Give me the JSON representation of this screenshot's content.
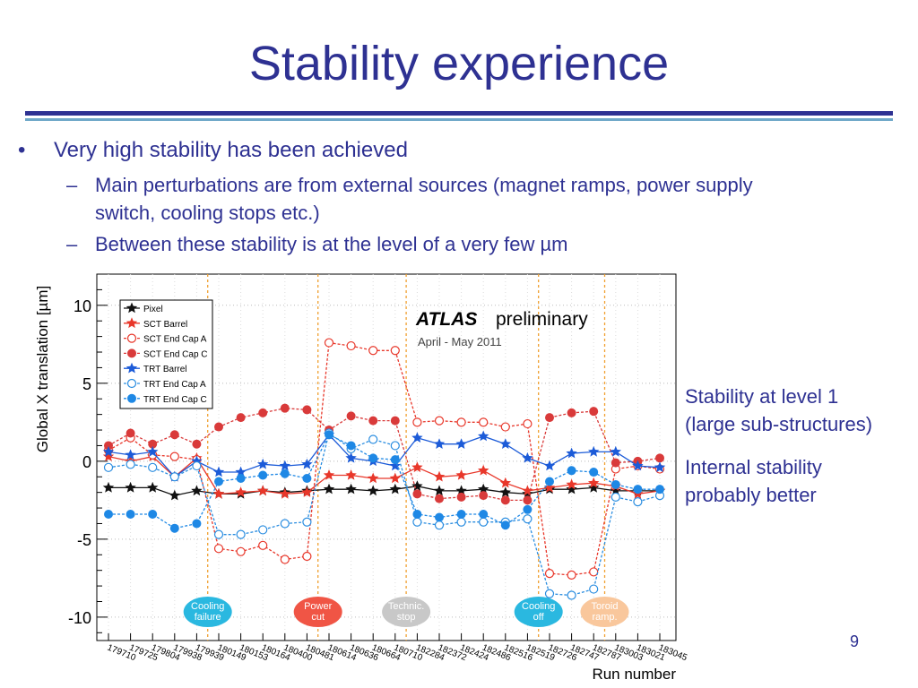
{
  "slide": {
    "title": "Stability experience",
    "bullet": "Very high stability has been achieved",
    "sub_bullets": [
      "Main perturbations are from external sources (magnet ramps, power supply",
      "switch, cooling stops etc.)",
      "Between these stability is at the level of a very few µm"
    ],
    "side_notes": [
      "Stability at level 1",
      "(large sub-structures)",
      "Internal stability",
      "probably better"
    ],
    "page_number": "9"
  },
  "chart_data": {
    "type": "line",
    "title": "ATLAS",
    "title_suffix": "preliminary",
    "subtitle": "April - May 2011",
    "xlabel": "Run number",
    "ylabel": "Global X translation [µm]",
    "ylim": [
      -11.5,
      12
    ],
    "yticks": [
      10,
      5,
      0,
      -5,
      -10
    ],
    "legend_position": "top-left",
    "categories": [
      "179710",
      "179725",
      "179804",
      "179938",
      "179939",
      "180149",
      "180153",
      "180164",
      "180400",
      "180481",
      "180614",
      "180636",
      "180664",
      "180710",
      "182284",
      "182372",
      "182424",
      "182486",
      "182516",
      "182519",
      "182726",
      "182747",
      "182787",
      "183003",
      "183021",
      "183045"
    ],
    "events": [
      {
        "label_lines": [
          "Cooling",
          "failure"
        ],
        "after_index": 4.5,
        "color": "#2ab8e0"
      },
      {
        "label_lines": [
          "Power",
          "cut"
        ],
        "after_index": 9.5,
        "color": "#f05545"
      },
      {
        "label_lines": [
          "Technic.",
          "stop"
        ],
        "after_index": 13.5,
        "color": "#c8c8c8"
      },
      {
        "label_lines": [
          "Cooling",
          "off"
        ],
        "after_index": 19.5,
        "color": "#2ab8e0"
      },
      {
        "label_lines": [
          "Toroid",
          "ramp."
        ],
        "after_index": 22.5,
        "color": "#f9c79c"
      }
    ],
    "series": [
      {
        "name": "Pixel",
        "color": "#111111",
        "marker": "star",
        "filled": true,
        "dashed": false,
        "values": [
          -1.7,
          -1.7,
          -1.7,
          -2.2,
          -1.9,
          -2.1,
          -2.1,
          -1.9,
          -2.0,
          -1.9,
          -1.8,
          -1.8,
          -1.9,
          -1.8,
          -1.6,
          -1.9,
          -1.9,
          -1.8,
          -2.0,
          -2.1,
          -1.8,
          -1.8,
          -1.7,
          -1.9,
          -1.9,
          -1.9
        ]
      },
      {
        "name": "SCT Barrel",
        "color": "#e8372a",
        "marker": "star",
        "filled": true,
        "dashed": false,
        "values": [
          0.3,
          0.0,
          0.3,
          -1.0,
          0.2,
          -2.1,
          -2.0,
          -1.9,
          -2.1,
          -2.0,
          -0.9,
          -0.9,
          -1.1,
          -1.1,
          -0.4,
          -1.0,
          -0.9,
          -0.6,
          -1.4,
          -1.9,
          -1.7,
          -1.5,
          -1.4,
          -1.6,
          -2.1,
          -1.9
        ]
      },
      {
        "name": "SCT End Cap A",
        "color": "#e8372a",
        "marker": "circle",
        "filled": false,
        "dashed": true,
        "values": [
          0.7,
          1.5,
          0.4,
          0.3,
          0.1,
          -5.6,
          -5.8,
          -5.4,
          -6.3,
          -6.1,
          7.6,
          7.4,
          7.1,
          7.1,
          2.5,
          2.6,
          2.5,
          2.5,
          2.2,
          2.4,
          -7.2,
          -7.3,
          -7.1,
          -0.5,
          -0.3,
          -0.5
        ]
      },
      {
        "name": "SCT End Cap C",
        "color": "#d93a3a",
        "marker": "circle",
        "filled": true,
        "dashed": true,
        "values": [
          1.0,
          1.8,
          1.1,
          1.7,
          1.1,
          2.2,
          2.8,
          3.1,
          3.4,
          3.3,
          2.0,
          2.9,
          2.6,
          2.6,
          -2.1,
          -2.4,
          -2.3,
          -2.2,
          -2.5,
          -2.5,
          2.8,
          3.1,
          3.2,
          -0.1,
          0.0,
          0.2
        ]
      },
      {
        "name": "TRT Barrel",
        "color": "#1c5bd8",
        "marker": "star",
        "filled": true,
        "dashed": false,
        "values": [
          0.6,
          0.4,
          0.6,
          -1.0,
          0.0,
          -0.7,
          -0.7,
          -0.2,
          -0.3,
          -0.2,
          1.7,
          0.2,
          0.0,
          -0.3,
          1.5,
          1.1,
          1.1,
          1.6,
          1.1,
          0.2,
          -0.3,
          0.5,
          0.6,
          0.6,
          -0.3,
          -0.4
        ]
      },
      {
        "name": "TRT End Cap A",
        "color": "#2a8de0",
        "marker": "circle",
        "filled": false,
        "dashed": true,
        "values": [
          -0.4,
          -0.2,
          -0.4,
          -1.0,
          -0.3,
          -4.7,
          -4.7,
          -4.4,
          -4.0,
          -3.9,
          1.8,
          0.8,
          1.4,
          1.0,
          -3.9,
          -4.1,
          -3.9,
          -3.9,
          -3.9,
          -3.7,
          -8.5,
          -8.6,
          -8.2,
          -2.3,
          -2.6,
          -2.2
        ]
      },
      {
        "name": "TRT End Cap C",
        "color": "#1e88e5",
        "marker": "circle",
        "filled": true,
        "dashed": true,
        "values": [
          -3.4,
          -3.4,
          -3.4,
          -4.3,
          -4.0,
          -1.3,
          -1.1,
          -0.9,
          -0.8,
          -1.1,
          1.7,
          1.0,
          0.2,
          0.1,
          -3.4,
          -3.6,
          -3.4,
          -3.4,
          -4.1,
          -3.1,
          -1.3,
          -0.6,
          -0.7,
          -1.5,
          -1.8,
          -1.8
        ]
      }
    ]
  }
}
